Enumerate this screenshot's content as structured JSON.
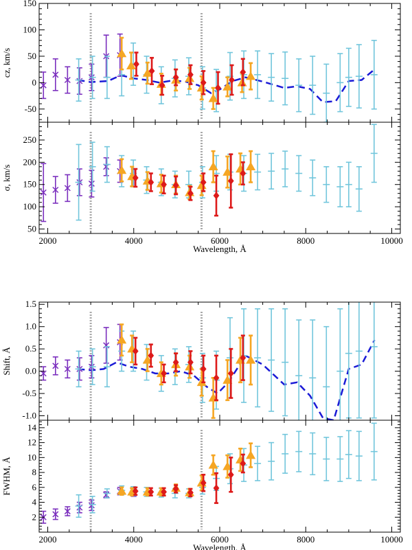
{
  "colors": {
    "purple": "#7b2fbe",
    "skyblue": "#72c6dc",
    "orange": "#f5a623",
    "red": "#dd1a1a",
    "model": "#1a1ad6",
    "marker_line": "#aaaaaa"
  },
  "chart_data": [
    {
      "type": "scatter",
      "panel": "cz",
      "ylabel": "cz, km/s",
      "xlabel": "",
      "xlim": [
        1800,
        10200
      ],
      "ylim": [
        -75,
        150
      ],
      "yticks": [
        -50,
        0,
        50,
        100,
        150
      ],
      "xticks": [
        2000,
        4000,
        6000,
        8000,
        10000
      ],
      "show_x_labels": false,
      "marker_lines_x": [
        3000,
        5577
      ],
      "model_line": {
        "x": [
          2700,
          3000,
          3400,
          3700,
          4000,
          4300,
          4600,
          4900,
          5200,
          5500,
          5800,
          6000,
          6300,
          6600,
          7000,
          7500,
          7800,
          8100,
          8400,
          8700,
          9000,
          9300,
          9600
        ],
        "y": [
          5,
          1,
          3,
          14,
          8,
          5,
          0,
          4,
          2,
          -5,
          -20,
          -13,
          3,
          10,
          2,
          -10,
          -7,
          -12,
          -37,
          -35,
          3,
          5,
          25
        ]
      },
      "series": [
        {
          "name": "purple",
          "marker": "x",
          "x": [
            1900,
            2180,
            2460,
            2740,
            3020,
            3360,
            3680
          ],
          "y": [
            -5,
            15,
            5,
            3,
            10,
            50,
            52
          ],
          "err": [
            25,
            30,
            25,
            25,
            25,
            40,
            40
          ]
        },
        {
          "name": "skyblue",
          "marker": "dash",
          "x": [
            2720,
            3040,
            3380,
            3720,
            3990,
            4300,
            4640,
            4960,
            5280,
            5600,
            5920,
            6240,
            6560,
            6880,
            7200,
            7520,
            7840,
            8160,
            8480,
            8800,
            9000,
            9240,
            9590
          ],
          "y": [
            5,
            10,
            10,
            15,
            35,
            15,
            -5,
            8,
            12,
            -10,
            -15,
            12,
            15,
            15,
            10,
            8,
            -5,
            -5,
            -20,
            0,
            10,
            12,
            15
          ],
          "err": [
            40,
            40,
            40,
            40,
            40,
            35,
            35,
            35,
            35,
            40,
            40,
            45,
            45,
            45,
            45,
            50,
            50,
            55,
            55,
            55,
            55,
            60,
            65
          ]
        },
        {
          "name": "orange",
          "marker": "triangle",
          "x": [
            3720,
            3940,
            4320,
            4640,
            4980,
            5300,
            5580,
            5850,
            6180,
            6520,
            6720
          ],
          "y": [
            55,
            32,
            18,
            -3,
            5,
            8,
            -10,
            -30,
            -8,
            0,
            12
          ],
          "err": [
            30,
            25,
            20,
            20,
            20,
            20,
            22,
            20,
            18,
            18,
            25
          ]
        },
        {
          "name": "red",
          "marker": "diamond",
          "x": [
            4060,
            4420,
            4660,
            4980,
            5320,
            5620,
            5960,
            6280,
            6540
          ],
          "y": [
            35,
            22,
            -5,
            10,
            15,
            0,
            -10,
            5,
            20
          ],
          "err": [
            22,
            25,
            18,
            15,
            18,
            22,
            30,
            28,
            25
          ]
        }
      ]
    },
    {
      "type": "scatter",
      "panel": "sigma",
      "ylabel": "σ, km/s",
      "xlabel": "Wavelength, Å",
      "xlim": [
        1800,
        10200
      ],
      "ylim": [
        40,
        290
      ],
      "yticks": [
        50,
        100,
        150,
        200,
        250
      ],
      "xticks": [
        2000,
        4000,
        6000,
        8000,
        10000
      ],
      "show_x_labels": true,
      "marker_lines_x": [
        3000,
        5577
      ],
      "series": [
        {
          "name": "purple",
          "marker": "x",
          "x": [
            1900,
            2180,
            2460,
            2740,
            3020,
            3360,
            3680,
            4000
          ],
          "y": [
            132,
            138,
            142,
            155,
            152,
            190,
            180,
            165
          ],
          "err": [
            65,
            30,
            30,
            30,
            30,
            20,
            25,
            20
          ]
        },
        {
          "name": "skyblue",
          "marker": "dash",
          "x": [
            2720,
            3040,
            3380,
            3720,
            3990,
            4300,
            4640,
            4960,
            5280,
            5600,
            5920,
            6240,
            6560,
            6880,
            7200,
            7520,
            7840,
            8160,
            8480,
            8800,
            9000,
            9240,
            9590
          ],
          "y": [
            155,
            190,
            195,
            180,
            175,
            160,
            155,
            150,
            150,
            155,
            175,
            178,
            175,
            178,
            180,
            185,
            175,
            165,
            150,
            145,
            150,
            140,
            220
          ],
          "err": [
            85,
            55,
            40,
            35,
            30,
            30,
            30,
            30,
            30,
            35,
            40,
            40,
            40,
            40,
            40,
            40,
            40,
            40,
            40,
            45,
            50,
            50,
            65
          ]
        },
        {
          "name": "orange",
          "marker": "triangle",
          "x": [
            3720,
            3960,
            4320,
            4640,
            4980,
            5300,
            5580,
            5850,
            6180,
            6480,
            6720
          ],
          "y": [
            182,
            168,
            158,
            152,
            150,
            132,
            148,
            190,
            178,
            185,
            190
          ],
          "err": [
            25,
            22,
            20,
            20,
            20,
            15,
            22,
            35,
            35,
            35,
            35
          ]
        },
        {
          "name": "red",
          "marker": "diamond",
          "x": [
            4040,
            4400,
            4700,
            4980,
            5320,
            5620,
            5920,
            6260,
            6540
          ],
          "y": [
            165,
            155,
            150,
            148,
            130,
            155,
            125,
            158,
            175
          ],
          "err": [
            20,
            20,
            20,
            20,
            15,
            20,
            45,
            60,
            25
          ]
        }
      ]
    },
    {
      "type": "scatter",
      "panel": "shift",
      "ylabel": "Shift, Å",
      "xlabel": "",
      "xlim": [
        1800,
        10200
      ],
      "ylim": [
        -1.1,
        1.55
      ],
      "yticks": [
        -1.0,
        -0.5,
        0.0,
        0.5,
        1.0,
        1.5
      ],
      "xticks": [
        2000,
        4000,
        6000,
        8000,
        10000
      ],
      "show_x_labels": false,
      "marker_lines_x": [
        3000,
        5577
      ],
      "model_line": {
        "x": [
          2700,
          3000,
          3300,
          3600,
          3900,
          4200,
          4500,
          4800,
          5100,
          5400,
          5700,
          5950,
          6200,
          6600,
          7000,
          7500,
          7800,
          8100,
          8400,
          8650,
          9000,
          9300,
          9600
        ],
        "y": [
          0.05,
          0.02,
          0.05,
          0.2,
          0.1,
          0.05,
          -0.05,
          -0.05,
          0.0,
          -0.1,
          -0.35,
          -0.5,
          -0.25,
          0.35,
          0.15,
          -0.3,
          -0.25,
          -0.55,
          -1.05,
          -1.1,
          0.05,
          0.15,
          0.7
        ]
      },
      "series": [
        {
          "name": "purple",
          "marker": "x",
          "x": [
            1900,
            2180,
            2460,
            2740,
            3020,
            3360,
            3680
          ],
          "y": [
            -0.05,
            0.12,
            0.05,
            0.05,
            0.1,
            0.58,
            0.65
          ],
          "err": [
            0.15,
            0.2,
            0.2,
            0.25,
            0.25,
            0.4,
            0.4
          ]
        },
        {
          "name": "skyblue",
          "marker": "dash",
          "x": [
            2720,
            3040,
            3380,
            3720,
            3990,
            4300,
            4640,
            4960,
            5280,
            5600,
            5920,
            6240,
            6560,
            6880,
            7200,
            7520,
            7840,
            8160,
            8480,
            8800,
            9000,
            9240,
            9590
          ],
          "y": [
            0.05,
            0.1,
            0.1,
            0.45,
            0.45,
            0.2,
            -0.05,
            0.1,
            0.15,
            -0.15,
            -0.2,
            0.3,
            0.35,
            0.3,
            0.25,
            0.2,
            -0.1,
            -0.15,
            -0.35,
            0.0,
            0.4,
            0.45,
            0.55
          ],
          "err": [
            0.4,
            0.4,
            0.45,
            0.45,
            0.45,
            0.4,
            0.4,
            0.4,
            0.4,
            0.55,
            0.65,
            0.9,
            1.05,
            1.1,
            1.15,
            1.2,
            1.25,
            1.3,
            1.35,
            1.4,
            1.45,
            1.5,
            1.6
          ]
        },
        {
          "name": "orange",
          "marker": "triangle",
          "x": [
            3720,
            3960,
            4320,
            4640,
            4980,
            5300,
            5580,
            5850,
            6180,
            6480,
            6720
          ],
          "y": [
            0.7,
            0.5,
            0.25,
            -0.05,
            0.15,
            0.1,
            -0.25,
            -0.6,
            -0.2,
            0.25,
            0.25
          ],
          "err": [
            0.35,
            0.3,
            0.25,
            0.25,
            0.25,
            0.25,
            0.3,
            0.45,
            0.45,
            0.5,
            0.55
          ]
        },
        {
          "name": "red",
          "marker": "diamond",
          "x": [
            4040,
            4400,
            4700,
            4980,
            5320,
            5620,
            5920,
            6260,
            6540
          ],
          "y": [
            0.45,
            0.35,
            -0.05,
            0.2,
            0.2,
            0.05,
            -0.15,
            -0.05,
            0.3
          ],
          "err": [
            0.3,
            0.25,
            0.2,
            0.2,
            0.25,
            0.3,
            0.5,
            0.55,
            0.5
          ]
        }
      ]
    },
    {
      "type": "scatter",
      "panel": "fwhm",
      "ylabel": "FWHM, Å",
      "xlabel": "Wavelength, Å",
      "xlim": [
        1800,
        10200
      ],
      "ylim": [
        0,
        15
      ],
      "yticks": [
        2,
        4,
        6,
        8,
        10,
        12,
        14
      ],
      "xticks": [
        2000,
        4000,
        6000,
        8000,
        10000
      ],
      "show_x_labels": true,
      "marker_lines_x": [
        3000,
        5577
      ],
      "series": [
        {
          "name": "purple",
          "marker": "x",
          "x": [
            1900,
            2180,
            2460,
            2740,
            3020,
            3360,
            3680,
            4000
          ],
          "y": [
            2.0,
            2.4,
            2.8,
            3.3,
            3.6,
            5.0,
            5.5,
            5.3
          ],
          "err": [
            0.8,
            0.7,
            0.6,
            0.7,
            0.7,
            0.4,
            0.5,
            0.5
          ]
        },
        {
          "name": "skyblue",
          "marker": "dash",
          "x": [
            2720,
            3040,
            3380,
            3720,
            3990,
            4300,
            4640,
            4960,
            5280,
            5600,
            5920,
            6240,
            6560,
            6880,
            7200,
            7520,
            7840,
            8160,
            8480,
            8800,
            9000,
            9240,
            9590
          ],
          "y": [
            3.5,
            3.7,
            5.2,
            5.6,
            5.5,
            5.4,
            5.3,
            5.2,
            5.2,
            6.0,
            7.2,
            8.5,
            9.0,
            9.2,
            9.5,
            10.5,
            10.8,
            10.5,
            9.8,
            9.8,
            10.4,
            10.2,
            10.8
          ],
          "err": [
            1.5,
            1.1,
            0.6,
            0.6,
            0.6,
            0.6,
            0.6,
            0.6,
            0.6,
            0.9,
            1.6,
            2.0,
            2.2,
            2.3,
            2.5,
            2.6,
            2.7,
            2.8,
            2.9,
            3.0,
            3.2,
            3.3,
            3.8
          ]
        },
        {
          "name": "orange",
          "marker": "triangle",
          "x": [
            3720,
            3960,
            4320,
            4640,
            4980,
            5300,
            5580,
            5850,
            6180,
            6480,
            6720
          ],
          "y": [
            5.5,
            5.4,
            5.4,
            5.4,
            5.9,
            5.3,
            6.6,
            9.0,
            8.8,
            9.7,
            10.3
          ],
          "err": [
            0.5,
            0.5,
            0.5,
            0.5,
            0.5,
            0.5,
            1.0,
            1.3,
            1.5,
            1.5,
            1.6
          ]
        },
        {
          "name": "red",
          "marker": "diamond",
          "x": [
            4040,
            4400,
            4700,
            4980,
            5320,
            5620,
            5920,
            6260,
            6540
          ],
          "y": [
            5.5,
            5.4,
            5.4,
            5.8,
            5.3,
            6.6,
            5.9,
            7.7,
            9.2
          ],
          "err": [
            0.5,
            0.5,
            0.5,
            0.5,
            0.5,
            1.1,
            2.0,
            2.3,
            1.2
          ]
        }
      ]
    }
  ]
}
